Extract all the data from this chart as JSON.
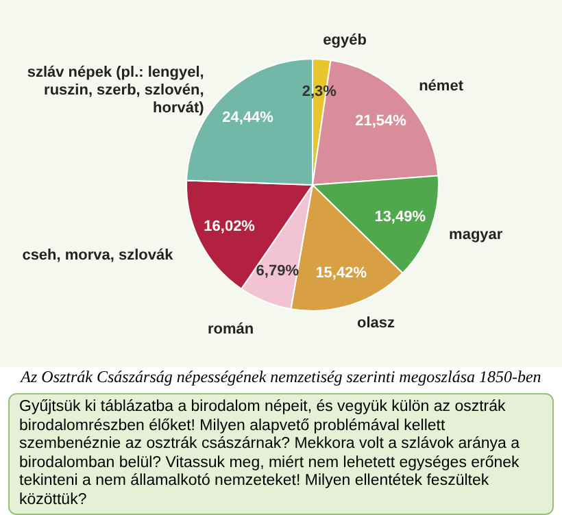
{
  "chart_data": {
    "type": "pie",
    "categories": [
      "egyéb",
      "német",
      "magyar",
      "olasz",
      "román",
      "cseh, morva, szlovák",
      "szláv népek (pl.: lengyel, ruszin, szerb, szlovén, horvát)"
    ],
    "values": [
      2.3,
      21.54,
      13.49,
      15.42,
      6.79,
      16.02,
      24.44
    ],
    "value_labels": [
      "2,3%",
      "21,54%",
      "13,49%",
      "15,42%",
      "6,79%",
      "16,02%",
      "24,44%"
    ],
    "colors": [
      "#e6c62c",
      "#d98d9b",
      "#4fa84b",
      "#d9a043",
      "#f2c4d3",
      "#b2213f",
      "#72b8a9"
    ],
    "annotations": [
      "Az Osztrák Császárság népességének nemzetiség szerinti megoszlása 1850-ben",
      "Gyűjtsük ki táblázatba a birodalom népeit, és vegyük külön az osztrák birodalomrészben élőket! Milyen alapvető problémával kellett szembenéznie az osztrák császárnak? Mekkora volt a szlávok aránya a birodalomban belül? Vitassuk meg, miért nem lehetett egységes erőnek tekinteni a nem államalkotó nemzeteket! Milyen ellentétek feszültek közöttük?"
    ]
  }
}
